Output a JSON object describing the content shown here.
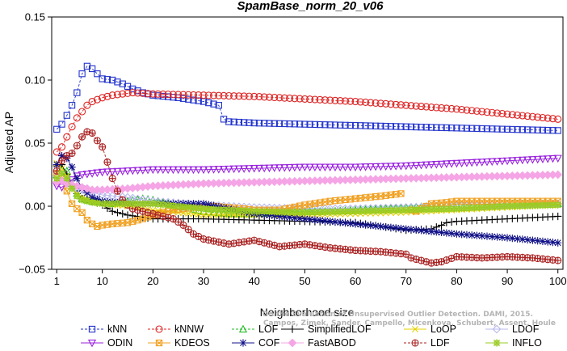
{
  "chart_data": {
    "type": "line",
    "title": "SpamBase_norm_20_v06",
    "xlabel": "Neighborhood size",
    "ylabel": "Adjusted AP",
    "xlim": [
      0,
      101
    ],
    "ylim": [
      -0.05,
      0.15
    ],
    "x_ticks": [
      1,
      10,
      20,
      30,
      40,
      50,
      60,
      70,
      80,
      90,
      100
    ],
    "y_ticks": [
      -0.05,
      0.0,
      0.05,
      0.1,
      0.15
    ],
    "y_tick_labels": [
      "−0.05",
      "0.00",
      "0.05",
      "0.10",
      "0.15"
    ],
    "grid": false,
    "legend_position": "bottom",
    "credit": [
      "Campos, Zimek, Sander, Campello, Micenkova, Schubert, Assent, Houle",
      "On the Evaluation of Unsupervised Outlier Detection. DAMI, 2015."
    ],
    "series": [
      {
        "name": "kNN",
        "color": "#2233cc",
        "marker": "square",
        "dashed": true,
        "points": [
          [
            1,
            0.061
          ],
          [
            2,
            0.065
          ],
          [
            3,
            0.072
          ],
          [
            4,
            0.08
          ],
          [
            5,
            0.09
          ],
          [
            6,
            0.105
          ],
          [
            7,
            0.111
          ],
          [
            8,
            0.109
          ],
          [
            9,
            0.105
          ],
          [
            10,
            0.101
          ],
          [
            12,
            0.1
          ],
          [
            14,
            0.097
          ],
          [
            16,
            0.093
          ],
          [
            18,
            0.09
          ],
          [
            20,
            0.088
          ],
          [
            25,
            0.086
          ],
          [
            30,
            0.083
          ],
          [
            33,
            0.08
          ],
          [
            34,
            0.069
          ],
          [
            35,
            0.067
          ],
          [
            40,
            0.066
          ],
          [
            50,
            0.065
          ],
          [
            60,
            0.064
          ],
          [
            70,
            0.063
          ],
          [
            80,
            0.062
          ],
          [
            90,
            0.061
          ],
          [
            100,
            0.06
          ]
        ]
      },
      {
        "name": "kNNW",
        "color": "#dd2222",
        "marker": "circle",
        "dashed": true,
        "points": [
          [
            1,
            0.043
          ],
          [
            2,
            0.047
          ],
          [
            3,
            0.055
          ],
          [
            4,
            0.063
          ],
          [
            5,
            0.07
          ],
          [
            6,
            0.075
          ],
          [
            7,
            0.08
          ],
          [
            8,
            0.083
          ],
          [
            10,
            0.086
          ],
          [
            12,
            0.088
          ],
          [
            14,
            0.089
          ],
          [
            16,
            0.09
          ],
          [
            20,
            0.089
          ],
          [
            30,
            0.088
          ],
          [
            40,
            0.087
          ],
          [
            50,
            0.085
          ],
          [
            60,
            0.083
          ],
          [
            70,
            0.08
          ],
          [
            80,
            0.077
          ],
          [
            90,
            0.073
          ],
          [
            100,
            0.069
          ]
        ]
      },
      {
        "name": "LOF",
        "color": "#22bb22",
        "marker": "triangle-up",
        "dashed": true,
        "points": [
          [
            1,
            0.025
          ],
          [
            2,
            0.03
          ],
          [
            3,
            0.028
          ],
          [
            4,
            0.018
          ],
          [
            5,
            0.01
          ],
          [
            6,
            0.006
          ],
          [
            8,
            0.004
          ],
          [
            10,
            0.003
          ],
          [
            12,
            0.002
          ],
          [
            15,
            0.004
          ],
          [
            18,
            0.006
          ],
          [
            20,
            0.005
          ],
          [
            25,
            0.0
          ],
          [
            30,
            -0.004
          ],
          [
            35,
            -0.006
          ],
          [
            40,
            -0.006
          ],
          [
            45,
            -0.005
          ],
          [
            50,
            -0.004
          ],
          [
            55,
            -0.004
          ],
          [
            60,
            -0.003
          ],
          [
            65,
            -0.002
          ],
          [
            70,
            -0.001
          ],
          [
            75,
            0.0
          ],
          [
            80,
            0.001
          ],
          [
            90,
            0.002
          ],
          [
            100,
            0.002
          ]
        ]
      },
      {
        "name": "SimplifiedLOF",
        "color": "#000000",
        "marker": "plus",
        "dashed": false,
        "points": [
          [
            1,
            0.032
          ],
          [
            2,
            0.033
          ],
          [
            3,
            0.025
          ],
          [
            4,
            0.016
          ],
          [
            5,
            0.01
          ],
          [
            6,
            0.006
          ],
          [
            8,
            0.004
          ],
          [
            10,
            0.001
          ],
          [
            12,
            -0.004
          ],
          [
            15,
            -0.007
          ],
          [
            20,
            -0.01
          ],
          [
            30,
            -0.01
          ],
          [
            40,
            -0.011
          ],
          [
            50,
            -0.012
          ],
          [
            60,
            -0.013
          ],
          [
            70,
            -0.019
          ],
          [
            75,
            -0.018
          ],
          [
            77,
            -0.015
          ],
          [
            78,
            -0.013
          ],
          [
            80,
            -0.012
          ],
          [
            90,
            -0.01
          ],
          [
            100,
            -0.008
          ]
        ]
      },
      {
        "name": "LoOP",
        "color": "#e6d000",
        "marker": "x",
        "dashed": false,
        "points": [
          [
            1,
            0.034
          ],
          [
            2,
            0.03
          ],
          [
            3,
            0.024
          ],
          [
            4,
            0.016
          ],
          [
            5,
            0.01
          ],
          [
            6,
            0.007
          ],
          [
            8,
            0.004
          ],
          [
            10,
            0.002
          ],
          [
            15,
            0.0
          ],
          [
            20,
            -0.003
          ],
          [
            30,
            -0.007
          ],
          [
            40,
            -0.007
          ],
          [
            50,
            -0.007
          ],
          [
            60,
            -0.006
          ],
          [
            70,
            -0.005
          ],
          [
            80,
            -0.003
          ],
          [
            90,
            -0.001
          ],
          [
            100,
            0.001
          ]
        ]
      },
      {
        "name": "LDOF",
        "color": "#b8b8ee",
        "marker": "diamond",
        "dashed": false,
        "points": [
          [
            1,
            0.024
          ],
          [
            2,
            0.022
          ],
          [
            3,
            0.019
          ],
          [
            5,
            0.014
          ],
          [
            8,
            0.011
          ],
          [
            10,
            0.009
          ],
          [
            15,
            0.007
          ],
          [
            20,
            0.004
          ],
          [
            30,
            0.001
          ],
          [
            40,
            -0.001
          ],
          [
            50,
            -0.002
          ],
          [
            60,
            -0.002
          ],
          [
            70,
            -0.001
          ],
          [
            80,
            0.0
          ],
          [
            90,
            0.001
          ],
          [
            100,
            0.002
          ]
        ]
      },
      {
        "name": "ODIN",
        "color": "#9922dd",
        "marker": "triangle-down",
        "dashed": false,
        "points": [
          [
            1,
            0.016
          ],
          [
            2,
            0.015
          ],
          [
            3,
            0.018
          ],
          [
            4,
            0.021
          ],
          [
            5,
            0.024
          ],
          [
            6,
            0.025
          ],
          [
            8,
            0.026
          ],
          [
            10,
            0.027
          ],
          [
            15,
            0.028
          ],
          [
            20,
            0.029
          ],
          [
            30,
            0.029
          ],
          [
            40,
            0.03
          ],
          [
            50,
            0.031
          ],
          [
            60,
            0.031
          ],
          [
            70,
            0.032
          ],
          [
            80,
            0.034
          ],
          [
            90,
            0.036
          ],
          [
            100,
            0.038
          ]
        ]
      },
      {
        "name": "KDEOS",
        "color": "#f0a020",
        "marker": "square-x",
        "dashed": false,
        "points": [
          [
            1,
            0.026
          ],
          [
            2,
            0.022
          ],
          [
            3,
            0.012
          ],
          [
            4,
            0.002
          ],
          [
            5,
            -0.002
          ],
          [
            6,
            -0.005
          ],
          [
            7,
            -0.011
          ],
          [
            8,
            -0.014
          ],
          [
            9,
            -0.016
          ],
          [
            10,
            -0.015
          ],
          [
            12,
            -0.014
          ],
          [
            15,
            -0.013
          ],
          [
            18,
            -0.01
          ],
          [
            20,
            -0.007
          ],
          [
            24,
            -0.003
          ],
          [
            28,
            -0.001
          ],
          [
            32,
            0.0
          ],
          [
            35,
            -0.001
          ],
          [
            38,
            -0.002
          ],
          [
            40,
            -0.003
          ],
          [
            45,
            -0.003
          ],
          [
            50,
            0.001
          ],
          [
            55,
            0.004
          ],
          [
            60,
            0.006
          ],
          [
            65,
            0.008
          ],
          [
            69,
            0.01
          ],
          [
            70,
            null
          ],
          [
            71,
            -0.003
          ],
          [
            72,
            -0.004
          ],
          [
            75,
            0.002
          ],
          [
            78,
            0.003
          ],
          [
            80,
            0.004
          ],
          [
            90,
            0.004
          ],
          [
            100,
            0.004
          ]
        ]
      },
      {
        "name": "COF",
        "color": "#111188",
        "marker": "asterisk",
        "dashed": false,
        "points": [
          [
            1,
            0.033
          ],
          [
            2,
            0.04
          ],
          [
            3,
            0.038
          ],
          [
            4,
            0.031
          ],
          [
            5,
            0.022
          ],
          [
            6,
            0.014
          ],
          [
            8,
            0.007
          ],
          [
            10,
            0.004
          ],
          [
            15,
            0.002
          ],
          [
            20,
            0.002
          ],
          [
            25,
            0.002
          ],
          [
            30,
            0.002
          ],
          [
            35,
            -0.002
          ],
          [
            40,
            -0.006
          ],
          [
            50,
            -0.01
          ],
          [
            60,
            -0.014
          ],
          [
            70,
            -0.018
          ],
          [
            80,
            -0.022
          ],
          [
            90,
            -0.025
          ],
          [
            100,
            -0.029
          ]
        ]
      },
      {
        "name": "FastABOD",
        "color": "#f5a5e5",
        "marker": "diamond-filled",
        "dashed": false,
        "points": [
          [
            1,
            0.019
          ],
          [
            2,
            0.02
          ],
          [
            3,
            0.018
          ],
          [
            5,
            0.016
          ],
          [
            8,
            0.013
          ],
          [
            10,
            0.013
          ],
          [
            15,
            0.014
          ],
          [
            20,
            0.016
          ],
          [
            30,
            0.018
          ],
          [
            40,
            0.019
          ],
          [
            50,
            0.02
          ],
          [
            60,
            0.021
          ],
          [
            70,
            0.022
          ],
          [
            80,
            0.023
          ],
          [
            90,
            0.024
          ],
          [
            100,
            0.025
          ]
        ]
      },
      {
        "name": "LDF",
        "color": "#aa2222",
        "marker": "circle-plus",
        "dashed": true,
        "points": [
          [
            1,
            0.028
          ],
          [
            2,
            0.036
          ],
          [
            3,
            0.04
          ],
          [
            4,
            0.042
          ],
          [
            5,
            0.048
          ],
          [
            6,
            0.055
          ],
          [
            7,
            0.059
          ],
          [
            8,
            0.058
          ],
          [
            9,
            0.052
          ],
          [
            10,
            0.047
          ],
          [
            11,
            0.035
          ],
          [
            12,
            0.022
          ],
          [
            13,
            0.012
          ],
          [
            14,
            0.005
          ],
          [
            15,
            0.001
          ],
          [
            16,
            -0.002
          ],
          [
            18,
            -0.004
          ],
          [
            20,
            -0.006
          ],
          [
            24,
            -0.01
          ],
          [
            26,
            -0.015
          ],
          [
            28,
            -0.022
          ],
          [
            30,
            -0.026
          ],
          [
            35,
            -0.03
          ],
          [
            40,
            -0.027
          ],
          [
            45,
            -0.032
          ],
          [
            50,
            -0.03
          ],
          [
            55,
            -0.033
          ],
          [
            60,
            -0.035
          ],
          [
            65,
            -0.036
          ],
          [
            70,
            -0.038
          ],
          [
            71,
            -0.041
          ],
          [
            75,
            -0.045
          ],
          [
            77,
            -0.044
          ],
          [
            80,
            -0.04
          ],
          [
            85,
            -0.041
          ],
          [
            90,
            -0.04
          ],
          [
            95,
            -0.041
          ],
          [
            100,
            -0.043
          ]
        ]
      },
      {
        "name": "INFLO",
        "color": "#99cc22",
        "marker": "star",
        "dashed": false,
        "points": [
          [
            1,
            0.022
          ],
          [
            2,
            0.026
          ],
          [
            3,
            0.022
          ],
          [
            4,
            0.014
          ],
          [
            5,
            0.008
          ],
          [
            6,
            0.005
          ],
          [
            8,
            0.003
          ],
          [
            10,
            0.002
          ],
          [
            15,
            0.002
          ],
          [
            20,
            0.002
          ],
          [
            30,
            -0.002
          ],
          [
            40,
            -0.004
          ],
          [
            50,
            -0.005
          ],
          [
            60,
            -0.004
          ],
          [
            70,
            -0.003
          ],
          [
            80,
            -0.002
          ],
          [
            90,
            0.0
          ],
          [
            100,
            0.001
          ]
        ]
      }
    ]
  }
}
